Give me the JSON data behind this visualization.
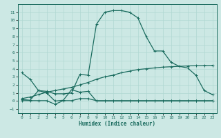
{
  "title": "",
  "xlabel": "Humidex (Indice chaleur)",
  "bg_color": "#cce8e4",
  "line_color": "#1a6b5e",
  "grid_color": "#b0d8d2",
  "xlim": [
    -0.5,
    23.5
  ],
  "ylim": [
    -1.5,
    12.0
  ],
  "xticks": [
    0,
    1,
    2,
    3,
    4,
    5,
    6,
    7,
    8,
    9,
    10,
    11,
    12,
    13,
    14,
    15,
    16,
    17,
    18,
    19,
    20,
    21,
    22,
    23
  ],
  "yticks": [
    -1,
    0,
    1,
    2,
    3,
    4,
    5,
    6,
    7,
    8,
    9,
    10,
    11
  ],
  "curve1_x": [
    0,
    1,
    2,
    3,
    4,
    5,
    6,
    7,
    8,
    9,
    10,
    11,
    12,
    13,
    14,
    15,
    16,
    17,
    18,
    19,
    20,
    21,
    22,
    23
  ],
  "curve1_y": [
    3.5,
    2.7,
    1.3,
    1.2,
    0.9,
    0.9,
    1.0,
    3.3,
    3.2,
    9.5,
    11.0,
    11.2,
    11.2,
    11.0,
    10.3,
    8.0,
    6.2,
    6.2,
    4.8,
    4.3,
    4.1,
    3.2,
    1.3,
    0.8
  ],
  "curve2_x": [
    0,
    1,
    2,
    3,
    4,
    5,
    6,
    7,
    8,
    9,
    10,
    11,
    12,
    13,
    14,
    15,
    16,
    17,
    18,
    19,
    20,
    21,
    22,
    23
  ],
  "curve2_y": [
    0.2,
    0.1,
    1.3,
    1.0,
    0.0,
    0.1,
    1.4,
    1.1,
    1.2,
    0.0,
    0.0,
    0.0,
    0.0,
    0.0,
    0.0,
    0.0,
    0.0,
    0.0,
    0.0,
    0.0,
    0.0,
    0.0,
    0.0,
    0.0
  ],
  "curve3_x": [
    0,
    1,
    2,
    3,
    4,
    5,
    6,
    7,
    8,
    9,
    10,
    11,
    12,
    13,
    14,
    15,
    16,
    17,
    18,
    19,
    20,
    21,
    22,
    23
  ],
  "curve3_y": [
    0.05,
    0.05,
    0.05,
    0.05,
    -0.4,
    0.05,
    0.05,
    0.3,
    0.3,
    0.05,
    0.05,
    0.05,
    0.05,
    0.05,
    0.05,
    0.05,
    0.05,
    0.05,
    0.05,
    0.05,
    0.05,
    0.05,
    0.05,
    0.05
  ],
  "curve4_x": [
    0,
    1,
    2,
    3,
    4,
    5,
    6,
    7,
    8,
    9,
    10,
    11,
    12,
    13,
    14,
    15,
    16,
    17,
    18,
    19,
    20,
    21,
    22,
    23
  ],
  "curve4_y": [
    0.3,
    0.5,
    0.8,
    1.1,
    1.3,
    1.5,
    1.7,
    2.0,
    2.3,
    2.7,
    3.0,
    3.2,
    3.5,
    3.7,
    3.9,
    4.0,
    4.1,
    4.2,
    4.25,
    4.3,
    4.35,
    4.38,
    4.4,
    4.42
  ],
  "marker": "+"
}
